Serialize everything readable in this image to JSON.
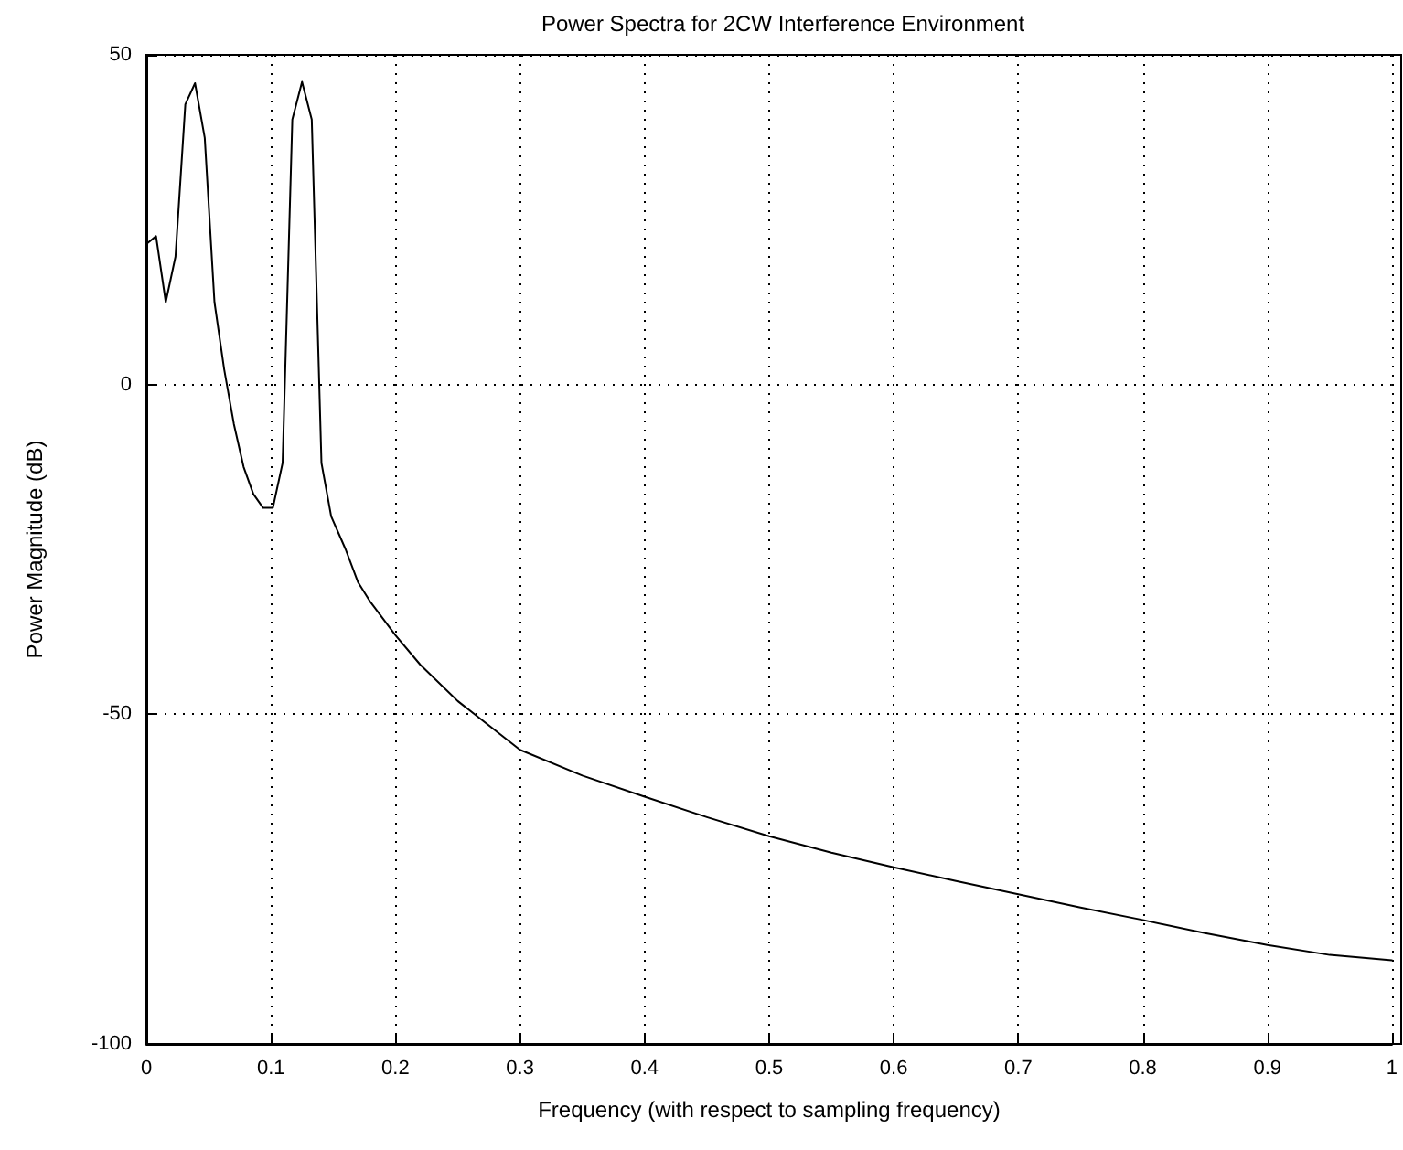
{
  "chart_data": {
    "type": "line",
    "title": "Power Spectra for 2CW Interference Environment",
    "xlabel": "Frequency (with respect to sampling frequency)",
    "ylabel": "Power Magnitude (dB)",
    "x": [
      0,
      0.0078,
      0.0156,
      0.0234,
      0.0313,
      0.0391,
      0.0469,
      0.0547,
      0.0625,
      0.0703,
      0.0781,
      0.0859,
      0.0938,
      0.1016,
      0.1094,
      0.1172,
      0.125,
      0.1328,
      0.1406,
      0.1484,
      0.16,
      0.17,
      0.18,
      0.2,
      0.22,
      0.25,
      0.3,
      0.35,
      0.4,
      0.45,
      0.5,
      0.55,
      0.6,
      0.65,
      0.7,
      0.75,
      0.8,
      0.85,
      0.9,
      0.95,
      1
    ],
    "series": [
      {
        "color": "#000000",
        "values": [
          21.3,
          22.5,
          12.5,
          19.4,
          42.5,
          45.7,
          37.4,
          12.5,
          2.3,
          -6,
          -12.5,
          -16.6,
          -18.7,
          -18.7,
          -11.9,
          40.2,
          45.9,
          40.2,
          -11.9,
          -20,
          -25,
          -30,
          -33,
          -38,
          -42.5,
          -48,
          -55.4,
          -59.3,
          -62.5,
          -65.6,
          -68.5,
          -71,
          -73.2,
          -75.3,
          -77.3,
          -79.3,
          -81.2,
          -83.2,
          -85,
          -86.5,
          -87.3
        ]
      }
    ],
    "xlim": [
      0,
      1
    ],
    "xticks": [
      0,
      0.1,
      0.2,
      0.3,
      0.4,
      0.5,
      0.6,
      0.7,
      0.8,
      0.9,
      1
    ],
    "ylim": [
      -100,
      50
    ],
    "yticks": [
      -100,
      -50,
      0,
      50
    ],
    "grid": true,
    "marker": "none",
    "line_style": "solid"
  }
}
